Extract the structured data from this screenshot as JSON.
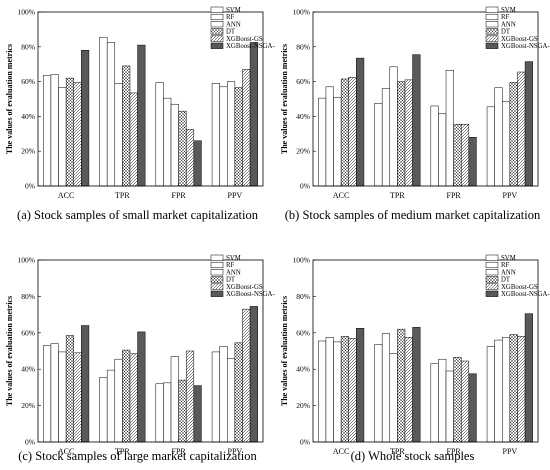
{
  "legend": [
    "SVM",
    "RF",
    "ANN",
    "DT",
    "XGBoost-GS",
    "XGBoost-NSGA-II"
  ],
  "chart_data": [
    {
      "type": "bar",
      "caption": "(a) Stock samples of small market capitalization",
      "ylabel": "The values of evaluation metrics",
      "categories": [
        "ACC",
        "TPR",
        "FPR",
        "PPV"
      ],
      "yticks": [
        "0%",
        "20%",
        "40%",
        "60%",
        "80%",
        "100%"
      ],
      "ylim": [
        0,
        100
      ],
      "legend_position": "top-right",
      "series": [
        {
          "name": "SVM",
          "values": [
            63.5,
            85.5,
            59.5,
            59.0
          ]
        },
        {
          "name": "RF",
          "values": [
            64.0,
            82.5,
            50.5,
            57.0
          ]
        },
        {
          "name": "ANN",
          "values": [
            56.5,
            59.0,
            47.0,
            60.0
          ]
        },
        {
          "name": "DT",
          "values": [
            62.0,
            69.0,
            43.0,
            56.5
          ]
        },
        {
          "name": "XGBoost-GS",
          "values": [
            59.5,
            53.5,
            32.5,
            67.0
          ]
        },
        {
          "name": "XGBoost-NSGA-II",
          "values": [
            78.0,
            81.0,
            26.0,
            82.5
          ]
        }
      ]
    },
    {
      "type": "bar",
      "caption": "(b) Stock samples of medium market capitalization",
      "ylabel": "The values of evaluation metrics",
      "categories": [
        "ACC",
        "TPR",
        "FPR",
        "PPV"
      ],
      "yticks": [
        "0%",
        "20%",
        "40%",
        "60%",
        "80%",
        "100%"
      ],
      "ylim": [
        0,
        100
      ],
      "legend_position": "top-right",
      "series": [
        {
          "name": "SVM",
          "values": [
            50.5,
            47.5,
            46.0,
            45.5
          ]
        },
        {
          "name": "RF",
          "values": [
            57.0,
            56.0,
            41.5,
            56.5
          ]
        },
        {
          "name": "ANN",
          "values": [
            51.0,
            68.5,
            66.5,
            48.5
          ]
        },
        {
          "name": "DT",
          "values": [
            61.5,
            60.0,
            35.5,
            59.5
          ]
        },
        {
          "name": "XGBoost-GS",
          "values": [
            62.5,
            61.0,
            35.5,
            65.5
          ]
        },
        {
          "name": "XGBoost-NSGA-II",
          "values": [
            73.5,
            75.5,
            28.0,
            71.5
          ]
        }
      ]
    },
    {
      "type": "bar",
      "caption": "(c) Stock samples of large market capitalization",
      "ylabel": "The values of evaluation metrics",
      "categories": [
        "ACC",
        "TPR",
        "FPR",
        "PPV"
      ],
      "yticks": [
        "0%",
        "20%",
        "40%",
        "60%",
        "80%",
        "100%"
      ],
      "ylim": [
        0,
        100
      ],
      "legend_position": "top-right",
      "series": [
        {
          "name": "SVM",
          "values": [
            53.0,
            35.5,
            32.0,
            49.5
          ]
        },
        {
          "name": "RF",
          "values": [
            54.0,
            39.5,
            32.5,
            52.5
          ]
        },
        {
          "name": "ANN",
          "values": [
            49.5,
            45.5,
            47.0,
            46.0
          ]
        },
        {
          "name": "DT",
          "values": [
            58.5,
            50.5,
            34.0,
            54.5
          ]
        },
        {
          "name": "XGBoost-GS",
          "values": [
            49.0,
            48.5,
            50.0,
            73.0
          ]
        },
        {
          "name": "XGBoost-NSGA-II",
          "values": [
            64.0,
            60.5,
            31.0,
            74.5
          ]
        }
      ]
    },
    {
      "type": "bar",
      "caption": "(d) Whole stock samples",
      "ylabel": "The values of evaluation metrics",
      "categories": [
        "ACC",
        "TPR",
        "FPR",
        "PPV"
      ],
      "yticks": [
        "0%",
        "20%",
        "40%",
        "60%",
        "80%",
        "100%"
      ],
      "ylim": [
        0,
        100
      ],
      "legend_position": "top-right",
      "series": [
        {
          "name": "SVM",
          "values": [
            55.5,
            53.5,
            43.0,
            52.5
          ]
        },
        {
          "name": "RF",
          "values": [
            57.5,
            59.5,
            45.5,
            56.0
          ]
        },
        {
          "name": "ANN",
          "values": [
            55.0,
            48.5,
            39.0,
            57.5
          ]
        },
        {
          "name": "DT",
          "values": [
            58.0,
            62.0,
            46.5,
            59.0
          ]
        },
        {
          "name": "XGBoost-GS",
          "values": [
            57.0,
            57.5,
            44.5,
            58.0
          ]
        },
        {
          "name": "XGBoost-NSGA-II",
          "values": [
            62.5,
            63.0,
            37.5,
            70.5
          ]
        }
      ]
    }
  ]
}
